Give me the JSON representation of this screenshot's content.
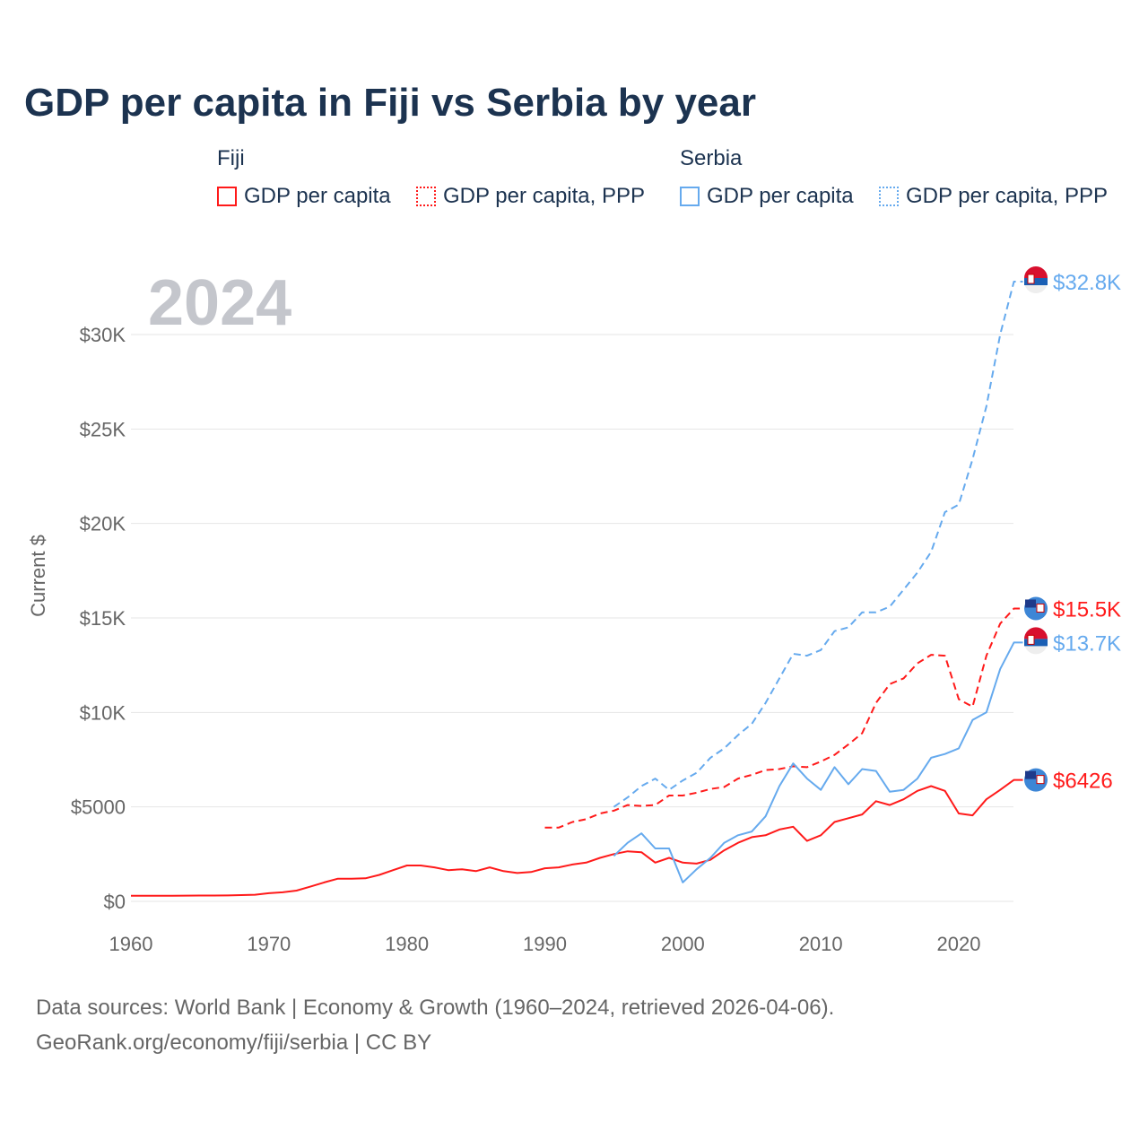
{
  "title": "GDP per capita in Fiji vs Serbia by year",
  "legend": {
    "groups": [
      {
        "name": "Fiji",
        "items": [
          "GDP per capita",
          "GDP per capita, PPP"
        ],
        "color": "#ff1a1a"
      },
      {
        "name": "Serbia",
        "items": [
          "GDP per capita",
          "GDP per capita, PPP"
        ],
        "color": "#66aaee"
      }
    ]
  },
  "footer": {
    "line1": "Data sources: World Bank | Economy & Growth (1960–2024, retrieved 2026-04-06).",
    "line2": "GeoRank.org/economy/fiji/serbia | CC BY"
  },
  "chart_data": {
    "type": "line",
    "title": "GDP per capita in Fiji vs Serbia by year",
    "year_label": "2024",
    "ylabel": "Current $",
    "xlim": [
      1960,
      2024
    ],
    "ylim": [
      0,
      33000
    ],
    "xticks": [
      1960,
      1970,
      1980,
      1990,
      2000,
      2010,
      2020
    ],
    "xtick_labels": [
      "1960",
      "1970",
      "1980",
      "1990",
      "2000",
      "2010",
      "2020"
    ],
    "yticks": [
      0,
      5000,
      10000,
      15000,
      20000,
      25000,
      30000
    ],
    "ytick_labels": [
      "$0",
      "$5000",
      "$10K",
      "$15K",
      "$20K",
      "$25K",
      "$30K"
    ],
    "grid": true,
    "series": [
      {
        "name": "Fiji GDP per capita",
        "color": "#ff1a1a",
        "dash": false,
        "end_label": "$6426",
        "start": 1960,
        "values": [
          300,
          300,
          300,
          300,
          305,
          310,
          310,
          315,
          330,
          350,
          430,
          480,
          570,
          780,
          1000,
          1200,
          1200,
          1220,
          1400,
          1650,
          1900,
          1900,
          1800,
          1650,
          1700,
          1600,
          1800,
          1600,
          1500,
          1550,
          1750,
          1800,
          1950,
          2050,
          2300,
          2500,
          2650,
          2600,
          2050,
          2300,
          2050,
          2000,
          2200,
          2700,
          3100,
          3400,
          3500,
          3800,
          3950,
          3200,
          3500,
          4200,
          4400,
          4600,
          5300,
          5100,
          5400,
          5850,
          6100,
          5850,
          4650,
          4550,
          5400,
          5900,
          6426
        ]
      },
      {
        "name": "Fiji GDP per capita, PPP",
        "color": "#ff1a1a",
        "dash": true,
        "end_label": "$15.5K",
        "start": 1990,
        "values": [
          3900,
          3900,
          4200,
          4350,
          4650,
          4800,
          5100,
          5050,
          5100,
          5600,
          5600,
          5750,
          5950,
          6050,
          6500,
          6700,
          6950,
          7000,
          7150,
          7100,
          7400,
          7750,
          8300,
          8900,
          10500,
          11500,
          11800,
          12600,
          13050,
          13000,
          10700,
          10300,
          13000,
          14700,
          15500
        ]
      },
      {
        "name": "Serbia GDP per capita",
        "color": "#66aaee",
        "dash": false,
        "end_label": "$13.7K",
        "start": 1995,
        "values": [
          2400,
          3100,
          3600,
          2800,
          2800,
          1000,
          1700,
          2300,
          3100,
          3500,
          3700,
          4500,
          6100,
          7300,
          6500,
          5900,
          7100,
          6200,
          7000,
          6900,
          5800,
          5900,
          6500,
          7600,
          7800,
          8100,
          9600,
          10000,
          12300,
          13700
        ]
      },
      {
        "name": "Serbia GDP per capita, PPP",
        "color": "#66aaee",
        "dash": true,
        "end_label": "$32.8K",
        "start": 1995,
        "values": [
          5000,
          5500,
          6100,
          6500,
          5900,
          6400,
          6800,
          7600,
          8100,
          8800,
          9400,
          10500,
          11800,
          13100,
          13000,
          13300,
          14300,
          14500,
          15300,
          15300,
          15600,
          16500,
          17400,
          18500,
          20600,
          21000,
          23400,
          26200,
          30000,
          32800
        ]
      }
    ]
  }
}
